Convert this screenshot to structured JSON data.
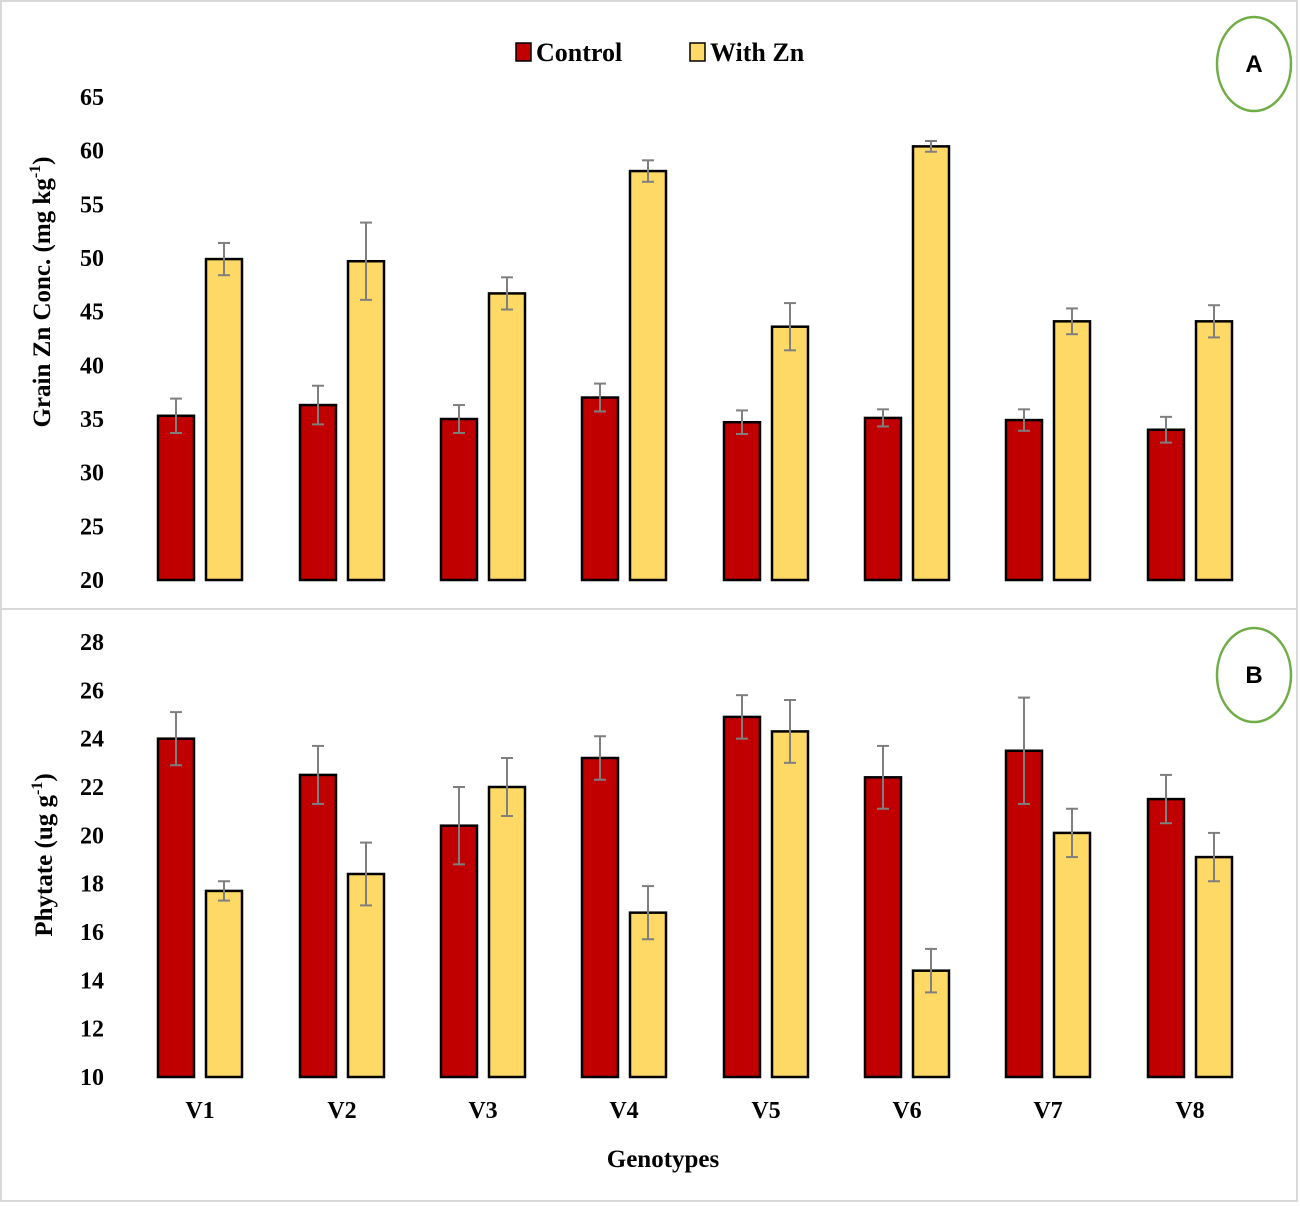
{
  "colors": {
    "control": "#c00000",
    "with_zn": "#ffd966",
    "bar_outline": "#000000",
    "error_bar": "#7f7f7f",
    "badge_ring": "#70ad47",
    "panel_border": "#d9d9d9"
  },
  "legend": {
    "control": "Control",
    "with_zn": "With Zn"
  },
  "xaxis_title": "Genotypes",
  "chart_data": [
    {
      "type": "bar",
      "panel_label": "A",
      "title": "",
      "ylabel_main": "Grain Zn Conc. (mg kg",
      "ylabel_sup": "-1",
      "ylabel_end": ")",
      "ylim": [
        20,
        65
      ],
      "yticks": [
        "20",
        "25",
        "30",
        "35",
        "40",
        "45",
        "50",
        "55",
        "60",
        "65"
      ],
      "categories": [
        "V1",
        "V2",
        "V3",
        "V4",
        "V5",
        "V6",
        "V7",
        "V8"
      ],
      "series": [
        {
          "name": "Control",
          "values": [
            35.3,
            36.3,
            35.0,
            37.0,
            34.7,
            35.1,
            34.9,
            34.0
          ],
          "errors": [
            1.6,
            1.8,
            1.3,
            1.3,
            1.1,
            0.8,
            1.0,
            1.2
          ]
        },
        {
          "name": "With Zn",
          "values": [
            49.9,
            49.7,
            46.7,
            58.1,
            43.6,
            60.4,
            44.1,
            44.1
          ],
          "errors": [
            1.5,
            3.6,
            1.5,
            1.0,
            2.2,
            0.5,
            1.2,
            1.5
          ]
        }
      ]
    },
    {
      "type": "bar",
      "panel_label": "B",
      "title": "",
      "ylabel_main": "Phytate (ug g",
      "ylabel_sup": "-1",
      "ylabel_end": ")",
      "ylim": [
        10,
        28
      ],
      "yticks": [
        "10",
        "12",
        "14",
        "16",
        "18",
        "20",
        "22",
        "24",
        "26",
        "28"
      ],
      "categories": [
        "V1",
        "V2",
        "V3",
        "V4",
        "V5",
        "V6",
        "V7",
        "V8"
      ],
      "series": [
        {
          "name": "Control",
          "values": [
            24.0,
            22.5,
            20.4,
            23.2,
            24.9,
            22.4,
            23.5,
            21.5
          ],
          "errors": [
            1.1,
            1.2,
            1.6,
            0.9,
            0.9,
            1.3,
            2.2,
            1.0
          ]
        },
        {
          "name": "With Zn",
          "values": [
            17.7,
            18.4,
            22.0,
            16.8,
            24.3,
            14.4,
            20.1,
            19.1
          ],
          "errors": [
            0.4,
            1.3,
            1.2,
            1.1,
            1.3,
            0.9,
            1.0,
            1.0
          ]
        }
      ]
    }
  ]
}
